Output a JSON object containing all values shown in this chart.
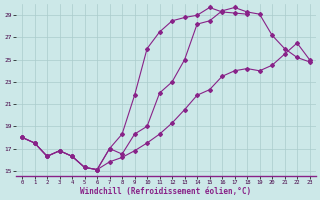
{
  "xlabel": "Windchill (Refroidissement éolien,°C)",
  "bg_color": "#cce8e8",
  "grid_color": "#aacccc",
  "line_color": "#882288",
  "xlim": [
    -0.5,
    23.5
  ],
  "ylim": [
    14.5,
    30.0
  ],
  "xticks": [
    0,
    1,
    2,
    3,
    4,
    5,
    6,
    7,
    8,
    9,
    10,
    11,
    12,
    13,
    14,
    15,
    16,
    17,
    18,
    19,
    20,
    21,
    22,
    23
  ],
  "yticks": [
    15,
    17,
    19,
    21,
    23,
    25,
    27,
    29
  ],
  "series1_x": [
    0,
    1,
    2,
    3,
    4,
    5,
    6,
    7,
    8,
    9,
    10,
    11,
    12,
    13,
    14,
    15,
    16,
    17,
    18
  ],
  "series1_y": [
    18.0,
    17.5,
    16.3,
    16.8,
    16.3,
    15.3,
    15.1,
    17.0,
    18.3,
    21.8,
    26.0,
    27.5,
    28.5,
    28.8,
    29.0,
    29.7,
    29.3,
    29.2,
    29.1
  ],
  "series2_x": [
    0,
    1,
    2,
    3,
    4,
    5,
    6,
    7,
    8,
    9,
    10,
    11,
    12,
    13,
    14,
    15,
    16,
    17,
    18,
    19,
    20,
    21,
    22,
    23
  ],
  "series2_y": [
    18.0,
    17.5,
    16.3,
    16.8,
    16.3,
    15.3,
    15.1,
    17.0,
    16.5,
    18.3,
    19.0,
    22.0,
    23.0,
    25.0,
    28.2,
    28.5,
    29.4,
    29.7,
    29.3,
    29.1,
    27.2,
    26.0,
    25.2,
    24.8
  ],
  "series3_x": [
    0,
    1,
    2,
    3,
    4,
    5,
    6,
    7,
    8,
    9,
    10,
    11,
    12,
    13,
    14,
    15,
    16,
    17,
    18,
    19,
    20,
    21,
    22,
    23
  ],
  "series3_y": [
    18.0,
    17.5,
    16.3,
    16.8,
    16.3,
    15.3,
    15.1,
    15.8,
    16.2,
    16.8,
    17.5,
    18.3,
    19.3,
    20.5,
    21.8,
    22.3,
    23.5,
    24.0,
    24.2,
    24.0,
    24.5,
    25.5,
    26.5,
    25.0
  ]
}
